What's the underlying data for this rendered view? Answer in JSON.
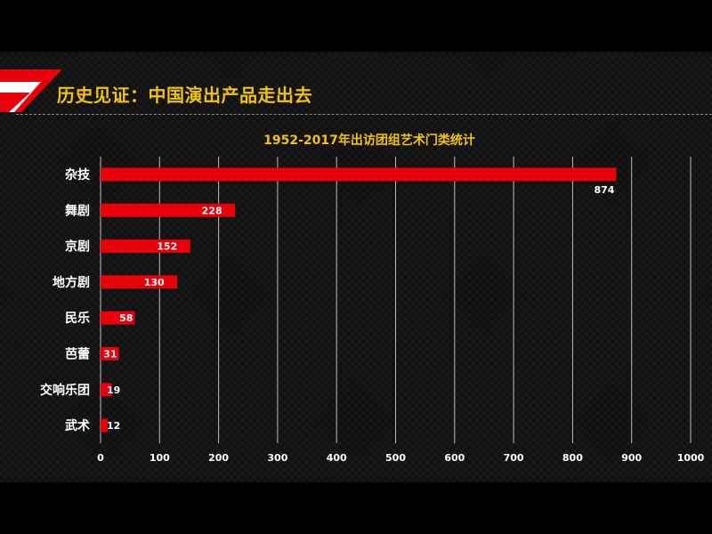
{
  "slide": {
    "title": "历史见证：中国演出产品走出去",
    "accent_color": "#e8000b",
    "title_color": "#f5c400"
  },
  "chart_data": {
    "type": "bar",
    "orientation": "horizontal",
    "title": "1952-2017年出访团组艺术门类统计",
    "categories": [
      "杂技",
      "舞剧",
      "京剧",
      "地方剧",
      "民乐",
      "芭蕾",
      "交响乐团",
      "武术"
    ],
    "values": [
      874,
      228,
      152,
      130,
      58,
      31,
      19,
      12
    ],
    "data_labels": [
      "874",
      "228",
      "152",
      "130",
      "58",
      "31",
      "19",
      "12"
    ],
    "xlim": [
      0,
      1000
    ],
    "x_ticks": [
      0,
      100,
      200,
      300,
      400,
      500,
      600,
      700,
      800,
      900,
      1000
    ],
    "x_tick_labels": [
      "0",
      "100",
      "200",
      "300",
      "400",
      "500",
      "600",
      "700",
      "800",
      "900",
      "1000"
    ],
    "xlabel": "",
    "ylabel": "",
    "grid": "vertical",
    "legend": "none",
    "bar_color": "#e8000b"
  }
}
